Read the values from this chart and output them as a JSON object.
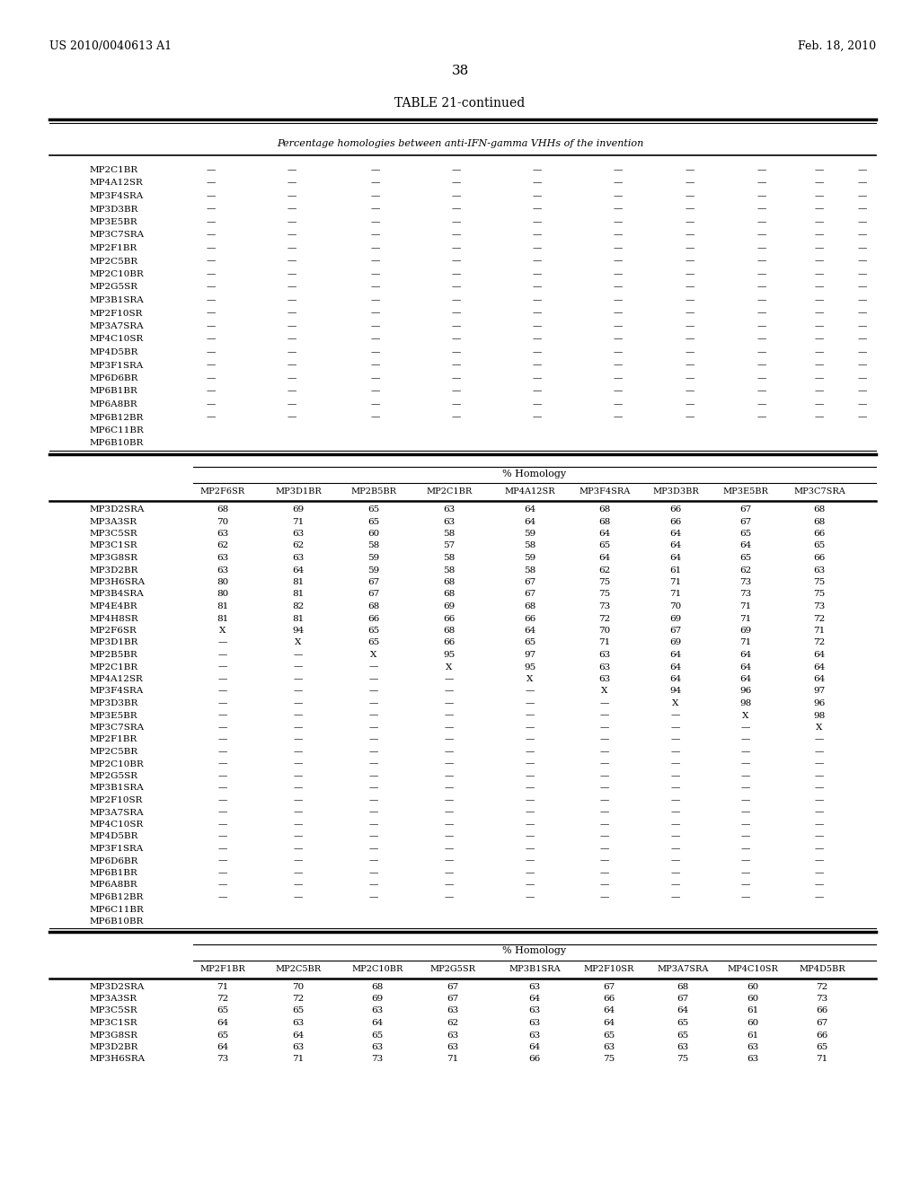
{
  "header_left": "US 2010/0040613 A1",
  "header_right": "Feb. 18, 2010",
  "page_number": "38",
  "table_title": "TABLE 21-continued",
  "subtitle": "Percentage homologies between anti-IFN-gamma VHHs of the invention",
  "section1": {
    "rows": [
      [
        "MP2C1BR",
        "—",
        "—",
        "—",
        "—",
        "—",
        "—",
        "—",
        "—",
        "—",
        "—"
      ],
      [
        "MP4A12SR",
        "—",
        "—",
        "—",
        "—",
        "—",
        "—",
        "—",
        "—",
        "—",
        "—"
      ],
      [
        "MP3F4SRA",
        "—",
        "—",
        "—",
        "—",
        "—",
        "—",
        "—",
        "—",
        "—",
        "—"
      ],
      [
        "MP3D3BR",
        "—",
        "—",
        "—",
        "—",
        "—",
        "—",
        "—",
        "—",
        "—",
        "—"
      ],
      [
        "MP3E5BR",
        "—",
        "—",
        "—",
        "—",
        "—",
        "—",
        "—",
        "—",
        "—",
        "—"
      ],
      [
        "MP3C7SRA",
        "—",
        "—",
        "—",
        "—",
        "—",
        "—",
        "—",
        "—",
        "—",
        "—"
      ],
      [
        "MP2F1BR",
        "—",
        "—",
        "—",
        "—",
        "—",
        "—",
        "—",
        "—",
        "—",
        "—"
      ],
      [
        "MP2C5BR",
        "—",
        "—",
        "—",
        "—",
        "—",
        "—",
        "—",
        "—",
        "—",
        "—"
      ],
      [
        "MP2C10BR",
        "—",
        "—",
        "—",
        "—",
        "—",
        "—",
        "—",
        "—",
        "—",
        "—"
      ],
      [
        "MP2G5SR",
        "—",
        "—",
        "—",
        "—",
        "—",
        "—",
        "—",
        "—",
        "—",
        "—"
      ],
      [
        "MP3B1SRA",
        "—",
        "—",
        "—",
        "—",
        "—",
        "—",
        "—",
        "—",
        "—",
        "—"
      ],
      [
        "MP2F10SR",
        "—",
        "—",
        "—",
        "—",
        "—",
        "—",
        "—",
        "—",
        "—",
        "—"
      ],
      [
        "MP3A7SRA",
        "—",
        "—",
        "—",
        "—",
        "—",
        "—",
        "—",
        "—",
        "—",
        "—"
      ],
      [
        "MP4C10SR",
        "—",
        "—",
        "—",
        "—",
        "—",
        "—",
        "—",
        "—",
        "—",
        "—"
      ],
      [
        "MP4D5BR",
        "—",
        "—",
        "—",
        "—",
        "—",
        "—",
        "—",
        "—",
        "—",
        "—"
      ],
      [
        "MP3F1SRA",
        "—",
        "—",
        "—",
        "—",
        "—",
        "—",
        "—",
        "—",
        "—",
        "—"
      ],
      [
        "MP6D6BR",
        "—",
        "—",
        "—",
        "—",
        "—",
        "—",
        "—",
        "—",
        "—",
        "—"
      ],
      [
        "MP6B1BR",
        "—",
        "—",
        "—",
        "—",
        "—",
        "—",
        "—",
        "—",
        "—",
        "—"
      ],
      [
        "MP6A8BR",
        "—",
        "—",
        "—",
        "—",
        "—",
        "—",
        "—",
        "—",
        "—",
        "—"
      ],
      [
        "MP6B12BR",
        "—",
        "—",
        "—",
        "—",
        "—",
        "—",
        "—",
        "—",
        "—",
        "—"
      ],
      [
        "MP6C11BR",
        "",
        "",
        "",
        "",
        "",
        "",
        "",
        "",
        "",
        ""
      ],
      [
        "MP6B10BR",
        "",
        "",
        "",
        "",
        "",
        "",
        "",
        "",
        "",
        ""
      ]
    ]
  },
  "section2": {
    "col_headers": [
      "MP2F6SR",
      "MP3D1BR",
      "MP2B5BR",
      "MP2C1BR",
      "MP4A12SR",
      "MP3F4SRA",
      "MP3D3BR",
      "MP3E5BR",
      "MP3C7SRA"
    ],
    "rows": [
      [
        "MP3D2SRA",
        "68",
        "69",
        "65",
        "63",
        "64",
        "68",
        "66",
        "67",
        "68"
      ],
      [
        "MP3A3SR",
        "70",
        "71",
        "65",
        "63",
        "64",
        "68",
        "66",
        "67",
        "68"
      ],
      [
        "MP3C5SR",
        "63",
        "63",
        "60",
        "58",
        "59",
        "64",
        "64",
        "65",
        "66"
      ],
      [
        "MP3C1SR",
        "62",
        "62",
        "58",
        "57",
        "58",
        "65",
        "64",
        "64",
        "65"
      ],
      [
        "MP3G8SR",
        "63",
        "63",
        "59",
        "58",
        "59",
        "64",
        "64",
        "65",
        "66"
      ],
      [
        "MP3D2BR",
        "63",
        "64",
        "59",
        "58",
        "58",
        "62",
        "61",
        "62",
        "63"
      ],
      [
        "MP3H6SRA",
        "80",
        "81",
        "67",
        "68",
        "67",
        "75",
        "71",
        "73",
        "75"
      ],
      [
        "MP3B4SRA",
        "80",
        "81",
        "67",
        "68",
        "67",
        "75",
        "71",
        "73",
        "75"
      ],
      [
        "MP4E4BR",
        "81",
        "82",
        "68",
        "69",
        "68",
        "73",
        "70",
        "71",
        "73"
      ],
      [
        "MP4H8SR",
        "81",
        "81",
        "66",
        "66",
        "66",
        "72",
        "69",
        "71",
        "72"
      ],
      [
        "MP2F6SR",
        "X",
        "94",
        "65",
        "68",
        "64",
        "70",
        "67",
        "69",
        "71"
      ],
      [
        "MP3D1BR",
        "—",
        "X",
        "65",
        "66",
        "65",
        "71",
        "69",
        "71",
        "72"
      ],
      [
        "MP2B5BR",
        "—",
        "—",
        "X",
        "95",
        "97",
        "63",
        "64",
        "64",
        "64"
      ],
      [
        "MP2C1BR",
        "—",
        "—",
        "—",
        "X",
        "95",
        "63",
        "64",
        "64",
        "64"
      ],
      [
        "MP4A12SR",
        "—",
        "—",
        "—",
        "—",
        "X",
        "63",
        "64",
        "64",
        "64"
      ],
      [
        "MP3F4SRA",
        "—",
        "—",
        "—",
        "—",
        "—",
        "X",
        "94",
        "96",
        "97"
      ],
      [
        "MP3D3BR",
        "—",
        "—",
        "—",
        "—",
        "—",
        "—",
        "X",
        "98",
        "96"
      ],
      [
        "MP3E5BR",
        "—",
        "—",
        "—",
        "—",
        "—",
        "—",
        "—",
        "X",
        "98"
      ],
      [
        "MP3C7SRA",
        "—",
        "—",
        "—",
        "—",
        "—",
        "—",
        "—",
        "—",
        "X"
      ],
      [
        "MP2F1BR",
        "—",
        "—",
        "—",
        "—",
        "—",
        "—",
        "—",
        "—",
        "—"
      ],
      [
        "MP2C5BR",
        "—",
        "—",
        "—",
        "—",
        "—",
        "—",
        "—",
        "—",
        "—"
      ],
      [
        "MP2C10BR",
        "—",
        "—",
        "—",
        "—",
        "—",
        "—",
        "—",
        "—",
        "—"
      ],
      [
        "MP2G5SR",
        "—",
        "—",
        "—",
        "—",
        "—",
        "—",
        "—",
        "—",
        "—"
      ],
      [
        "MP3B1SRA",
        "—",
        "—",
        "—",
        "—",
        "—",
        "—",
        "—",
        "—",
        "—"
      ],
      [
        "MP2F10SR",
        "—",
        "—",
        "—",
        "—",
        "—",
        "—",
        "—",
        "—",
        "—"
      ],
      [
        "MP3A7SRA",
        "—",
        "—",
        "—",
        "—",
        "—",
        "—",
        "—",
        "—",
        "—"
      ],
      [
        "MP4C10SR",
        "—",
        "—",
        "—",
        "—",
        "—",
        "—",
        "—",
        "—",
        "—"
      ],
      [
        "MP4D5BR",
        "—",
        "—",
        "—",
        "—",
        "—",
        "—",
        "—",
        "—",
        "—"
      ],
      [
        "MP3F1SRA",
        "—",
        "—",
        "—",
        "—",
        "—",
        "—",
        "—",
        "—",
        "—"
      ],
      [
        "MP6D6BR",
        "—",
        "—",
        "—",
        "—",
        "—",
        "—",
        "—",
        "—",
        "—"
      ],
      [
        "MP6B1BR",
        "—",
        "—",
        "—",
        "—",
        "—",
        "—",
        "—",
        "—",
        "—"
      ],
      [
        "MP6A8BR",
        "—",
        "—",
        "—",
        "—",
        "—",
        "—",
        "—",
        "—",
        "—"
      ],
      [
        "MP6B12BR",
        "—",
        "—",
        "—",
        "—",
        "—",
        "—",
        "—",
        "—",
        "—"
      ],
      [
        "MP6C11BR",
        "",
        "",
        "",
        "",
        "",
        "",
        "",
        "",
        ""
      ],
      [
        "MP6B10BR",
        "",
        "",
        "",
        "",
        "",
        "",
        "",
        "",
        ""
      ]
    ]
  },
  "section3": {
    "col_headers": [
      "MP2F1BR",
      "MP2C5BR",
      "MP2C10BR",
      "MP2G5SR",
      "MP3B1SRA",
      "MP2F10SR",
      "MP3A7SRA",
      "MP4C10SR",
      "MP4D5BR"
    ],
    "rows": [
      [
        "MP3D2SRA",
        "71",
        "70",
        "68",
        "67",
        "63",
        "67",
        "68",
        "60",
        "72"
      ],
      [
        "MP3A3SR",
        "72",
        "72",
        "69",
        "67",
        "64",
        "66",
        "67",
        "60",
        "73"
      ],
      [
        "MP3C5SR",
        "65",
        "65",
        "63",
        "63",
        "63",
        "64",
        "64",
        "61",
        "66"
      ],
      [
        "MP3C1SR",
        "64",
        "63",
        "64",
        "62",
        "63",
        "64",
        "65",
        "60",
        "67"
      ],
      [
        "MP3G8SR",
        "65",
        "64",
        "65",
        "63",
        "63",
        "65",
        "65",
        "61",
        "66"
      ],
      [
        "MP3D2BR",
        "64",
        "63",
        "63",
        "63",
        "64",
        "63",
        "63",
        "63",
        "65"
      ],
      [
        "MP3H6SRA",
        "73",
        "71",
        "73",
        "71",
        "66",
        "75",
        "75",
        "63",
        "71"
      ]
    ]
  }
}
